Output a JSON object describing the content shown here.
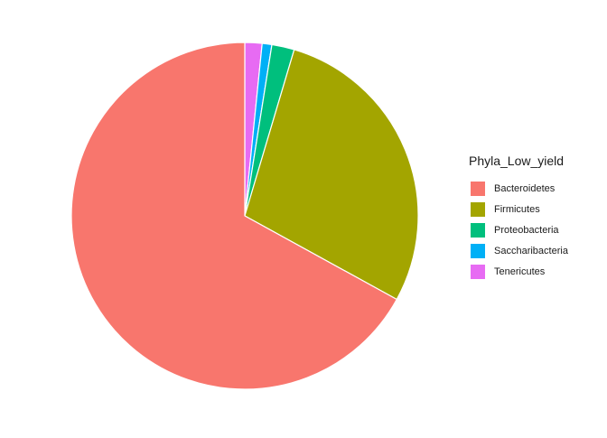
{
  "chart_data": {
    "type": "pie",
    "title": "",
    "legend_title": "Phyla_Low_yield",
    "legend_position": "right",
    "slice_border_color": "#ffffff",
    "start_angle": "top, clockwise",
    "categories": [
      "Bacteroidetes",
      "Firmicutes",
      "Proteobacteria",
      "Saccharibacteria",
      "Tenericutes"
    ],
    "values": [
      67.0,
      28.4,
      2.1,
      0.9,
      1.6
    ],
    "slice_order_clockwise": [
      "Tenericutes",
      "Saccharibacteria",
      "Proteobacteria",
      "Firmicutes",
      "Bacteroidetes"
    ],
    "colors": {
      "Bacteroidetes": "#F8766D",
      "Firmicutes": "#A3A500",
      "Proteobacteria": "#00BF7D",
      "Saccharibacteria": "#00B0F6",
      "Tenericutes": "#E76BF3"
    }
  }
}
